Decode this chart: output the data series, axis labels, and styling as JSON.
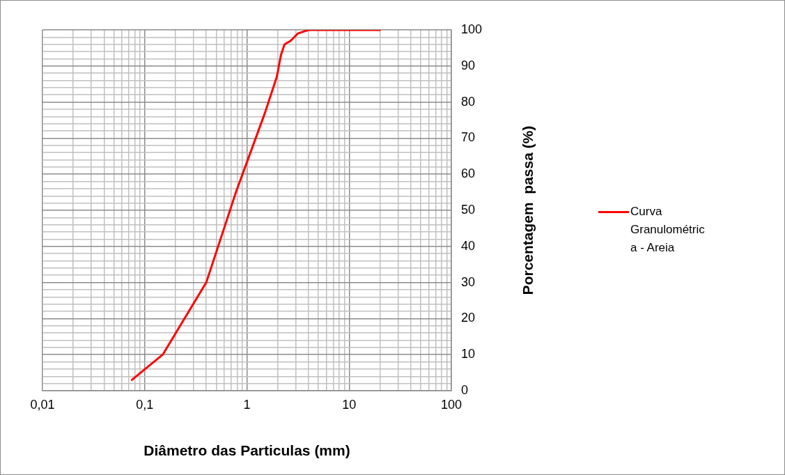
{
  "chart_data": {
    "type": "line",
    "xlabel": "Diâmetro das Particulas (mm)",
    "ylabel": "Porcentagem  passa (%)",
    "x": [
      0.075,
      0.15,
      0.4,
      0.78,
      1.5,
      1.96,
      2.15,
      2.33,
      2.68,
      3.14,
      4,
      20
    ],
    "series": [
      {
        "name": "Curva Granulométrica - Areia",
        "color": "#ff0000",
        "values": [
          3,
          10,
          30,
          55,
          77,
          87,
          93,
          96,
          97,
          99,
          100,
          100
        ]
      }
    ],
    "log": "x",
    "xlim": [
      0.01,
      100
    ],
    "xticks": [
      {
        "value": 0.01,
        "label": "0,01"
      },
      {
        "value": 0.02,
        "label": null
      },
      {
        "value": 0.03,
        "label": null
      },
      {
        "value": 0.04,
        "label": null
      },
      {
        "value": 0.05,
        "label": null
      },
      {
        "value": 0.06,
        "label": null
      },
      {
        "value": 0.07,
        "label": null
      },
      {
        "value": 0.08,
        "label": null
      },
      {
        "value": 0.09,
        "label": null
      },
      {
        "value": 0.1,
        "label": "0,1"
      },
      {
        "value": 0.2,
        "label": null
      },
      {
        "value": 0.3,
        "label": null
      },
      {
        "value": 0.4,
        "label": null
      },
      {
        "value": 0.5,
        "label": null
      },
      {
        "value": 0.6,
        "label": null
      },
      {
        "value": 0.7,
        "label": null
      },
      {
        "value": 0.8,
        "label": null
      },
      {
        "value": 0.9,
        "label": null
      },
      1,
      {
        "value": 2,
        "label": null
      },
      {
        "value": 3,
        "label": null
      },
      {
        "value": 4,
        "label": null
      },
      {
        "value": 5,
        "label": null
      },
      {
        "value": 6,
        "label": null
      },
      {
        "value": 7,
        "label": null
      },
      {
        "value": 8,
        "label": null
      },
      {
        "value": 9,
        "label": null
      },
      10,
      {
        "value": 20,
        "label": null
      },
      {
        "value": 30,
        "label": null
      },
      {
        "value": 40,
        "label": null
      },
      {
        "value": 50,
        "label": null
      },
      {
        "value": 60,
        "label": null
      },
      {
        "value": 70,
        "label": null
      },
      {
        "value": 80,
        "label": null
      },
      {
        "value": 90,
        "label": null
      },
      100
    ],
    "ylim": [
      0,
      100
    ],
    "yticks": [
      0,
      {
        "value": 2,
        "label": null
      },
      {
        "value": 4,
        "label": null
      },
      {
        "value": 6,
        "label": null
      },
      {
        "value": 8,
        "label": null
      },
      10,
      {
        "value": 12,
        "label": null
      },
      {
        "value": 14,
        "label": null
      },
      {
        "value": 16,
        "label": null
      },
      {
        "value": 18,
        "label": null
      },
      20,
      {
        "value": 22,
        "label": null
      },
      {
        "value": 24,
        "label": null
      },
      {
        "value": 26,
        "label": null
      },
      {
        "value": 28,
        "label": null
      },
      30,
      {
        "value": 32,
        "label": null
      },
      {
        "value": 34,
        "label": null
      },
      {
        "value": 36,
        "label": null
      },
      {
        "value": 38,
        "label": null
      },
      40,
      {
        "value": 42,
        "label": null
      },
      {
        "value": 44,
        "label": null
      },
      {
        "value": 46,
        "label": null
      },
      {
        "value": 48,
        "label": null
      },
      50,
      {
        "value": 52,
        "label": null
      },
      {
        "value": 54,
        "label": null
      },
      {
        "value": 56,
        "label": null
      },
      {
        "value": 58,
        "label": null
      },
      60,
      {
        "value": 62,
        "label": null
      },
      {
        "value": 64,
        "label": null
      },
      {
        "value": 66,
        "label": null
      },
      {
        "value": 68,
        "label": null
      },
      70,
      {
        "value": 72,
        "label": null
      },
      {
        "value": 74,
        "label": null
      },
      {
        "value": 76,
        "label": null
      },
      {
        "value": 78,
        "label": null
      },
      80,
      {
        "value": 82,
        "label": null
      },
      {
        "value": 84,
        "label": null
      },
      {
        "value": 86,
        "label": null
      },
      {
        "value": 88,
        "label": null
      },
      90,
      {
        "value": 92,
        "label": null
      },
      {
        "value": 94,
        "label": null
      },
      {
        "value": 96,
        "label": null
      },
      {
        "value": 98,
        "label": null
      },
      100
    ],
    "grid": true,
    "legend": "right",
    "marker": "none",
    "line_style": "solid"
  }
}
